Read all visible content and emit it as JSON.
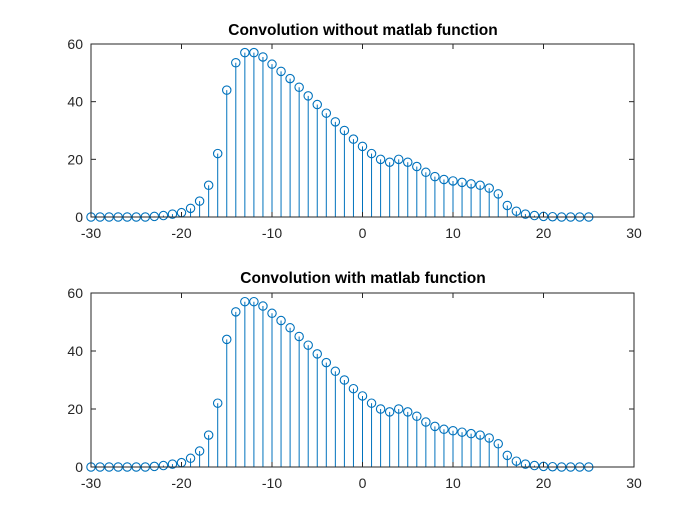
{
  "chart_data": [
    {
      "type": "stem",
      "title": "Convolution without matlab function",
      "xlabel": "",
      "ylabel": "",
      "xlim": [
        -30,
        30
      ],
      "ylim": [
        0,
        60
      ],
      "xticks": [
        -30,
        -20,
        -10,
        0,
        10,
        20,
        30
      ],
      "yticks": [
        0,
        20,
        40,
        60
      ],
      "grid": false,
      "color": "#0072bd",
      "series": [
        {
          "x": [
            -30,
            -29,
            -28,
            -27,
            -26,
            -25,
            -24,
            -23,
            -22,
            -21,
            -20,
            -19,
            -18,
            -17,
            -16,
            -15,
            -14,
            -13,
            -12,
            -11,
            -10,
            -9,
            -8,
            -7,
            -6,
            -5,
            -4,
            -3,
            -2,
            -1,
            0,
            1,
            2,
            3,
            4,
            5,
            6,
            7,
            8,
            9,
            10,
            11,
            12,
            13,
            14,
            15,
            16,
            17,
            18,
            19,
            20,
            21,
            22,
            23,
            24,
            25
          ],
          "y": [
            0,
            0,
            0,
            0,
            0,
            0,
            0,
            0.2,
            0.5,
            1,
            1.5,
            3,
            5.5,
            11,
            22,
            44,
            53.5,
            57,
            57,
            55.5,
            53,
            50.5,
            48,
            45,
            42,
            39,
            36,
            33,
            30,
            27,
            24.5,
            22,
            20,
            19,
            20,
            19,
            17.5,
            15.5,
            14,
            13,
            12.5,
            12,
            11.5,
            11,
            10,
            8,
            4,
            2,
            1,
            0.5,
            0.2,
            0.1,
            0,
            0,
            0,
            0
          ]
        }
      ]
    },
    {
      "type": "stem",
      "title": "Convolution with matlab function",
      "xlabel": "",
      "ylabel": "",
      "xlim": [
        -30,
        30
      ],
      "ylim": [
        0,
        60
      ],
      "xticks": [
        -30,
        -20,
        -10,
        0,
        10,
        20,
        30
      ],
      "yticks": [
        0,
        20,
        40,
        60
      ],
      "grid": false,
      "color": "#0072bd",
      "series": [
        {
          "x": [
            -30,
            -29,
            -28,
            -27,
            -26,
            -25,
            -24,
            -23,
            -22,
            -21,
            -20,
            -19,
            -18,
            -17,
            -16,
            -15,
            -14,
            -13,
            -12,
            -11,
            -10,
            -9,
            -8,
            -7,
            -6,
            -5,
            -4,
            -3,
            -2,
            -1,
            0,
            1,
            2,
            3,
            4,
            5,
            6,
            7,
            8,
            9,
            10,
            11,
            12,
            13,
            14,
            15,
            16,
            17,
            18,
            19,
            20,
            21,
            22,
            23,
            24,
            25
          ],
          "y": [
            0,
            0,
            0,
            0,
            0,
            0,
            0,
            0.2,
            0.5,
            1,
            1.5,
            3,
            5.5,
            11,
            22,
            44,
            53.5,
            57,
            57,
            55.5,
            53,
            50.5,
            48,
            45,
            42,
            39,
            36,
            33,
            30,
            27,
            24.5,
            22,
            20,
            19,
            20,
            19,
            17.5,
            15.5,
            14,
            13,
            12.5,
            12,
            11.5,
            11,
            10,
            8,
            4,
            2,
            1,
            0.5,
            0.2,
            0.1,
            0,
            0,
            0,
            0
          ]
        }
      ]
    }
  ]
}
